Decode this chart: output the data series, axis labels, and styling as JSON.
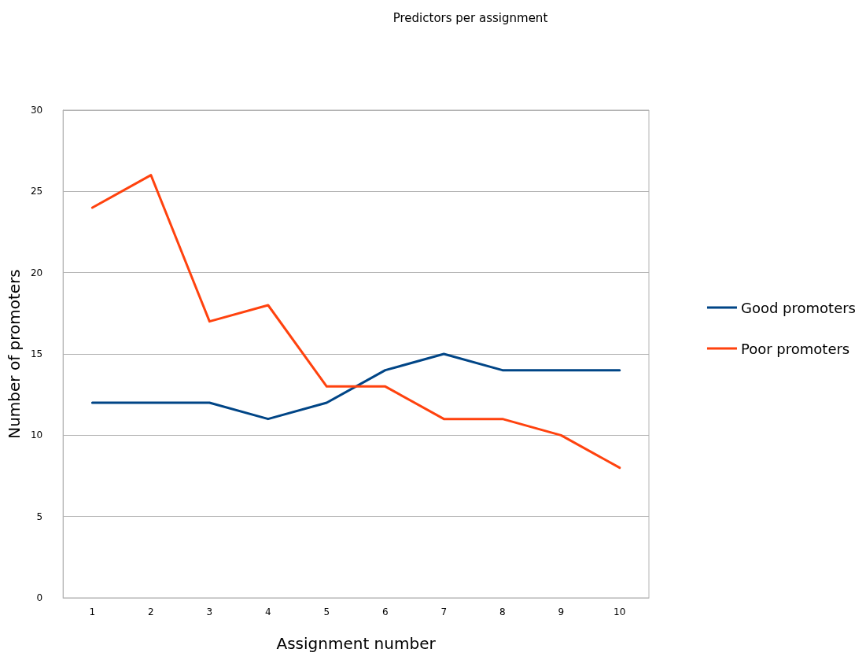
{
  "chart_data": {
    "type": "line",
    "title": "Predictors per assignment",
    "xlabel": "Assignment number",
    "ylabel": "Number of promoters",
    "categories": [
      "1",
      "2",
      "3",
      "4",
      "5",
      "6",
      "7",
      "8",
      "9",
      "10"
    ],
    "series": [
      {
        "name": "Good promoters",
        "color": "#004586",
        "values": [
          12,
          12,
          12,
          11,
          12,
          14,
          15,
          14,
          14,
          14
        ]
      },
      {
        "name": "Poor promoters",
        "color": "#ff420e",
        "values": [
          24,
          26,
          17,
          18,
          13,
          13,
          11,
          11,
          10,
          8
        ]
      }
    ],
    "ylim": [
      0,
      30
    ],
    "yticks": [
      0,
      5,
      10,
      15,
      20,
      25,
      30
    ],
    "grid": "y",
    "legend": "right",
    "marker": "none",
    "line_style": "solid"
  }
}
